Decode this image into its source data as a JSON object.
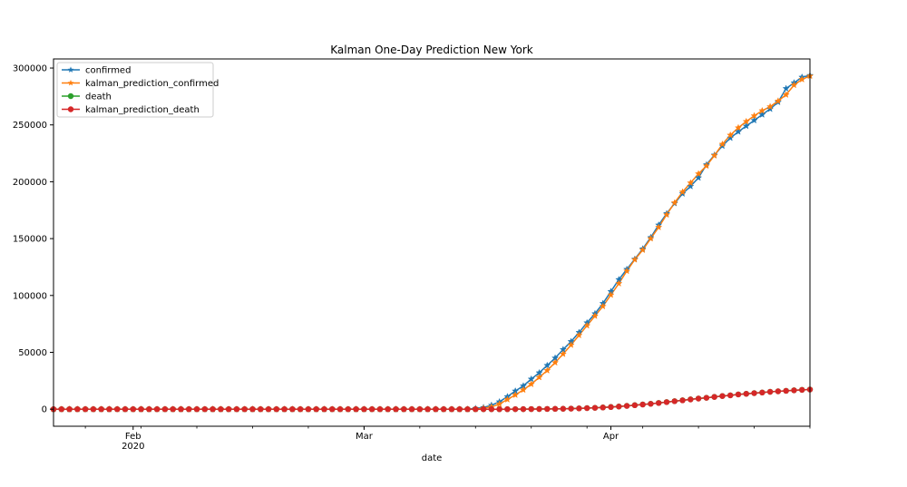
{
  "chart_data": {
    "type": "line",
    "title": "Kalman One-Day Prediction New York",
    "xlabel": "date",
    "ylabel": "",
    "x_start": "2020-01-22",
    "x_end": "2020-04-26",
    "xlim": [
      "2020-01-22",
      "2020-04-26"
    ],
    "ylim": [
      -15000,
      308000
    ],
    "y_ticks": [
      0,
      50000,
      100000,
      150000,
      200000,
      250000,
      300000
    ],
    "y_tick_labels": [
      "0",
      "50000",
      "100000",
      "150000",
      "200000",
      "250000",
      "300000"
    ],
    "x_ticks": [
      {
        "date": "2020-02-01",
        "label": "Feb",
        "sublabel": "2020"
      },
      {
        "date": "2020-03-01",
        "label": "Mar",
        "sublabel": ""
      },
      {
        "date": "2020-04-01",
        "label": "Apr",
        "sublabel": ""
      }
    ],
    "grid": false,
    "legend_position": "top-left",
    "series": [
      {
        "name": "confirmed",
        "color": "#1f77b4",
        "marker": "star",
        "x": [
          "2020-03-15",
          "2020-03-16",
          "2020-03-17",
          "2020-03-18",
          "2020-03-19",
          "2020-03-20",
          "2020-03-21",
          "2020-03-22",
          "2020-03-23",
          "2020-03-24",
          "2020-03-25",
          "2020-03-26",
          "2020-03-27",
          "2020-03-28",
          "2020-03-29",
          "2020-03-30",
          "2020-03-31",
          "2020-04-01",
          "2020-04-02",
          "2020-04-03",
          "2020-04-04",
          "2020-04-05",
          "2020-04-06",
          "2020-04-07",
          "2020-04-08",
          "2020-04-09",
          "2020-04-10",
          "2020-04-11",
          "2020-04-12",
          "2020-04-13",
          "2020-04-14",
          "2020-04-15",
          "2020-04-16",
          "2020-04-17",
          "2020-04-18",
          "2020-04-19",
          "2020-04-20",
          "2020-04-21",
          "2020-04-22",
          "2020-04-23",
          "2020-04-24",
          "2020-04-25",
          "2020-04-26"
        ],
        "values": [
          700,
          1500,
          3500,
          6500,
          11000,
          16000,
          20500,
          26500,
          32000,
          38500,
          45000,
          52500,
          59500,
          67500,
          76000,
          84000,
          93000,
          103500,
          114000,
          123000,
          132000,
          141000,
          151000,
          162000,
          172000,
          181000,
          189500,
          196000,
          203500,
          215000,
          223500,
          231500,
          238500,
          244000,
          249000,
          254000,
          259000,
          264000,
          270000,
          282000,
          287000,
          292000,
          293500
        ]
      },
      {
        "name": "kalman_prediction_confirmed",
        "color": "#ff7f0e",
        "marker": "star",
        "x": [
          "2020-03-15",
          "2020-03-16",
          "2020-03-17",
          "2020-03-18",
          "2020-03-19",
          "2020-03-20",
          "2020-03-21",
          "2020-03-22",
          "2020-03-23",
          "2020-03-24",
          "2020-03-25",
          "2020-03-26",
          "2020-03-27",
          "2020-03-28",
          "2020-03-29",
          "2020-03-30",
          "2020-03-31",
          "2020-04-01",
          "2020-04-02",
          "2020-04-03",
          "2020-04-04",
          "2020-04-05",
          "2020-04-06",
          "2020-04-07",
          "2020-04-08",
          "2020-04-09",
          "2020-04-10",
          "2020-04-11",
          "2020-04-12",
          "2020-04-13",
          "2020-04-14",
          "2020-04-15",
          "2020-04-16",
          "2020-04-17",
          "2020-04-18",
          "2020-04-19",
          "2020-04-20",
          "2020-04-21",
          "2020-04-22",
          "2020-04-23",
          "2020-04-24",
          "2020-04-25",
          "2020-04-26"
        ],
        "values": [
          0,
          800,
          2000,
          4500,
          8500,
          12500,
          17000,
          22000,
          28000,
          34000,
          41000,
          48500,
          56500,
          65000,
          73500,
          82000,
          90500,
          100500,
          110500,
          121500,
          131500,
          140000,
          150000,
          160000,
          171000,
          181500,
          191000,
          199000,
          207000,
          214000,
          223000,
          233000,
          241000,
          247500,
          253000,
          258000,
          262500,
          266000,
          271000,
          276500,
          285000,
          290000,
          293000
        ]
      },
      {
        "name": "death",
        "color": "#2ca02c",
        "marker": "circle",
        "x": [
          "2020-03-20",
          "2020-03-21",
          "2020-03-22",
          "2020-03-23",
          "2020-03-24",
          "2020-03-25",
          "2020-03-26",
          "2020-03-27",
          "2020-03-28",
          "2020-03-29",
          "2020-03-30",
          "2020-03-31",
          "2020-04-01",
          "2020-04-02",
          "2020-04-03",
          "2020-04-04",
          "2020-04-05",
          "2020-04-06",
          "2020-04-07",
          "2020-04-08",
          "2020-04-09",
          "2020-04-10",
          "2020-04-11",
          "2020-04-12",
          "2020-04-13",
          "2020-04-14",
          "2020-04-15",
          "2020-04-16",
          "2020-04-17",
          "2020-04-18",
          "2020-04-19",
          "2020-04-20",
          "2020-04-21",
          "2020-04-22",
          "2020-04-23",
          "2020-04-24",
          "2020-04-25",
          "2020-04-26"
        ],
        "values": [
          35,
          60,
          110,
          160,
          210,
          285,
          385,
          520,
          730,
          965,
          1220,
          1550,
          1940,
          2370,
          2935,
          3565,
          4160,
          4760,
          5490,
          6270,
          7070,
          7840,
          8630,
          9390,
          10060,
          10830,
          11590,
          12190,
          13000,
          13560,
          14130,
          14680,
          15300,
          15740,
          16160,
          16600,
          17000,
          17300
        ]
      },
      {
        "name": "kalman_prediction_death",
        "color": "#d62728",
        "marker": "circle",
        "x": [
          "2020-03-20",
          "2020-03-21",
          "2020-03-22",
          "2020-03-23",
          "2020-03-24",
          "2020-03-25",
          "2020-03-26",
          "2020-03-27",
          "2020-03-28",
          "2020-03-29",
          "2020-03-30",
          "2020-03-31",
          "2020-04-01",
          "2020-04-02",
          "2020-04-03",
          "2020-04-04",
          "2020-04-05",
          "2020-04-06",
          "2020-04-07",
          "2020-04-08",
          "2020-04-09",
          "2020-04-10",
          "2020-04-11",
          "2020-04-12",
          "2020-04-13",
          "2020-04-14",
          "2020-04-15",
          "2020-04-16",
          "2020-04-17",
          "2020-04-18",
          "2020-04-19",
          "2020-04-20",
          "2020-04-21",
          "2020-04-22",
          "2020-04-23",
          "2020-04-24",
          "2020-04-25",
          "2020-04-26"
        ],
        "values": [
          30,
          50,
          95,
          145,
          195,
          265,
          360,
          490,
          690,
          920,
          1180,
          1500,
          1880,
          2310,
          2860,
          3480,
          4090,
          4700,
          5420,
          6200,
          7000,
          7780,
          8560,
          9330,
          10000,
          10770,
          11530,
          12140,
          12940,
          13510,
          14090,
          14640,
          15260,
          15710,
          16130,
          16570,
          16970,
          17280
        ]
      }
    ]
  }
}
